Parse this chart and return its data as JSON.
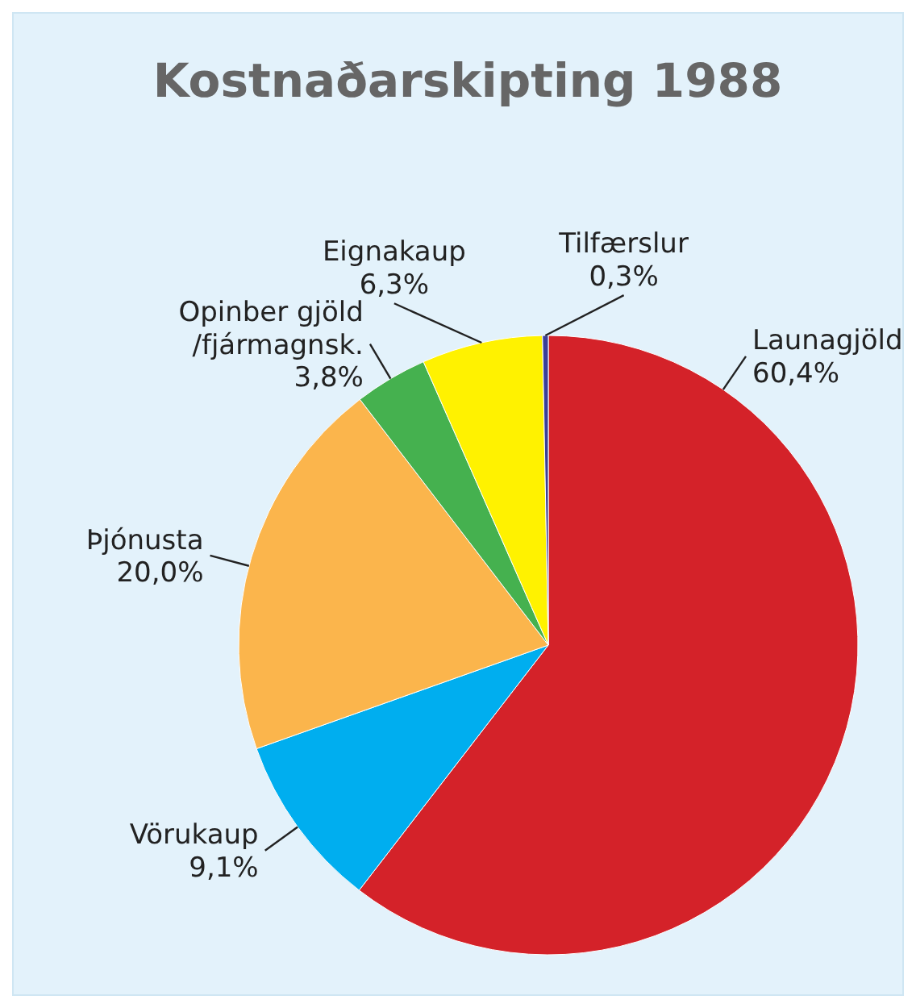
{
  "chart_data": {
    "type": "pie",
    "title": "Kostnaðarskipting 1988",
    "categories": [
      "Launagjöld",
      "Vörukaup",
      "Þjónusta",
      "Opinber gjöld\n/fjármagnsk.",
      "Eignakaup",
      "Tilfærslur"
    ],
    "values": [
      60.4,
      9.1,
      20.0,
      3.8,
      6.3,
      0.3
    ],
    "colors": [
      "#d42229",
      "#00aeef",
      "#fbb54c",
      "#45b14f",
      "#fff200",
      "#3a3f98"
    ],
    "value_labels": [
      "60,4%",
      "9,1%",
      "20,0%",
      "3,8%",
      "6,3%",
      "0,3%"
    ]
  }
}
